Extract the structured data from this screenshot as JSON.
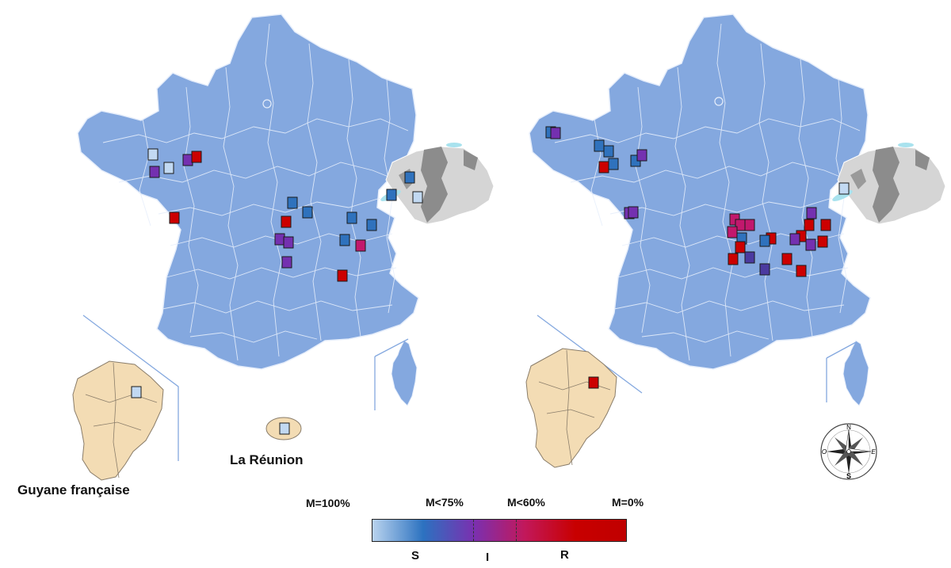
{
  "labels": {
    "guyane": "Guyane française",
    "reunion": "La Réunion"
  },
  "legend": {
    "scale": [
      "M=100%",
      "M<75%",
      "M<60%",
      "M=0%"
    ],
    "categories": [
      "S",
      "I",
      "R"
    ],
    "gradient_stops": [
      "#b9d3ee",
      "#2c72c0",
      "#7a30b0",
      "#c2185b",
      "#c80000",
      "#c00000"
    ]
  },
  "compass": {
    "n": "N",
    "e": "E",
    "s": "S",
    "o": "O"
  },
  "colors": {
    "france": "#84a8df",
    "department_border": "#e6eefb",
    "switzerland": "#d5d5d5",
    "switzerland_dark": "#7f7f7f",
    "guyane": "#f3dcb4",
    "inset_line": "#84a8df"
  },
  "maps": [
    {
      "name": "left",
      "sites": [
        {
          "level": "light-blue"
        },
        {
          "level": "light-blue"
        },
        {
          "level": "purple"
        },
        {
          "level": "purple"
        },
        {
          "level": "red"
        },
        {
          "level": "red"
        },
        {
          "level": "blue"
        },
        {
          "level": "blue"
        },
        {
          "level": "red"
        },
        {
          "level": "purple"
        },
        {
          "level": "purple"
        },
        {
          "level": "purple"
        },
        {
          "level": "blue"
        },
        {
          "level": "blue"
        },
        {
          "level": "blue"
        },
        {
          "level": "magenta"
        },
        {
          "level": "red"
        },
        {
          "level": "blue"
        },
        {
          "level": "blue"
        },
        {
          "level": "light-blue"
        },
        {
          "level": "light-blue"
        },
        {
          "level": "light-blue"
        }
      ]
    },
    {
      "name": "right",
      "sites": [
        {
          "level": "blue"
        },
        {
          "level": "purple"
        },
        {
          "level": "blue"
        },
        {
          "level": "blue"
        },
        {
          "level": "blue"
        },
        {
          "level": "red"
        },
        {
          "level": "blue"
        },
        {
          "level": "purple"
        },
        {
          "level": "purple"
        },
        {
          "level": "purple"
        },
        {
          "level": "magenta"
        },
        {
          "level": "magenta"
        },
        {
          "level": "magenta"
        },
        {
          "level": "magenta"
        },
        {
          "level": "blue"
        },
        {
          "level": "red"
        },
        {
          "level": "red"
        },
        {
          "level": "indigo"
        },
        {
          "level": "red"
        },
        {
          "level": "blue"
        },
        {
          "level": "red"
        },
        {
          "level": "indigo"
        },
        {
          "level": "red"
        },
        {
          "level": "purple"
        },
        {
          "level": "red"
        },
        {
          "level": "red"
        },
        {
          "level": "purple"
        },
        {
          "level": "red"
        },
        {
          "level": "purple"
        },
        {
          "level": "red"
        },
        {
          "level": "light-blue"
        },
        {
          "level": "red"
        }
      ]
    }
  ]
}
